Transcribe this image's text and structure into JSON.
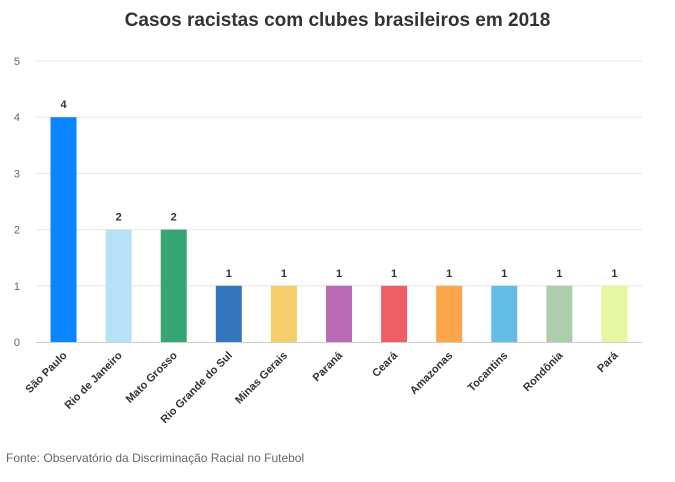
{
  "chart_data": {
    "type": "bar",
    "title": "Casos racistas com clubes brasileiros em 2018",
    "categories": [
      "São Paulo",
      "Rio de Janeiro",
      "Mato Grosso",
      "Rio Grande do Sul",
      "Minas Gerais",
      "Paraná",
      "Ceará",
      "Amazonas",
      "Tocantins",
      "Rondônia",
      "Pará"
    ],
    "values": [
      4,
      2,
      2,
      1,
      1,
      1,
      1,
      1,
      1,
      1,
      1
    ],
    "colors": [
      "#0a84ff",
      "#b7e1f7",
      "#35a576",
      "#3276bd",
      "#f5cd6b",
      "#b96cb5",
      "#ee5e66",
      "#fca54a",
      "#63bde4",
      "#acceab",
      "#e6f7a1"
    ],
    "yticks": [
      0,
      1,
      2,
      3,
      4,
      5
    ],
    "ylim": [
      0,
      5
    ],
    "xlabel": "",
    "ylabel": "",
    "grid": true,
    "legend": "none",
    "data_labels": true
  },
  "source": "Fonte: Observatório da Discriminação Racial no Futebol"
}
